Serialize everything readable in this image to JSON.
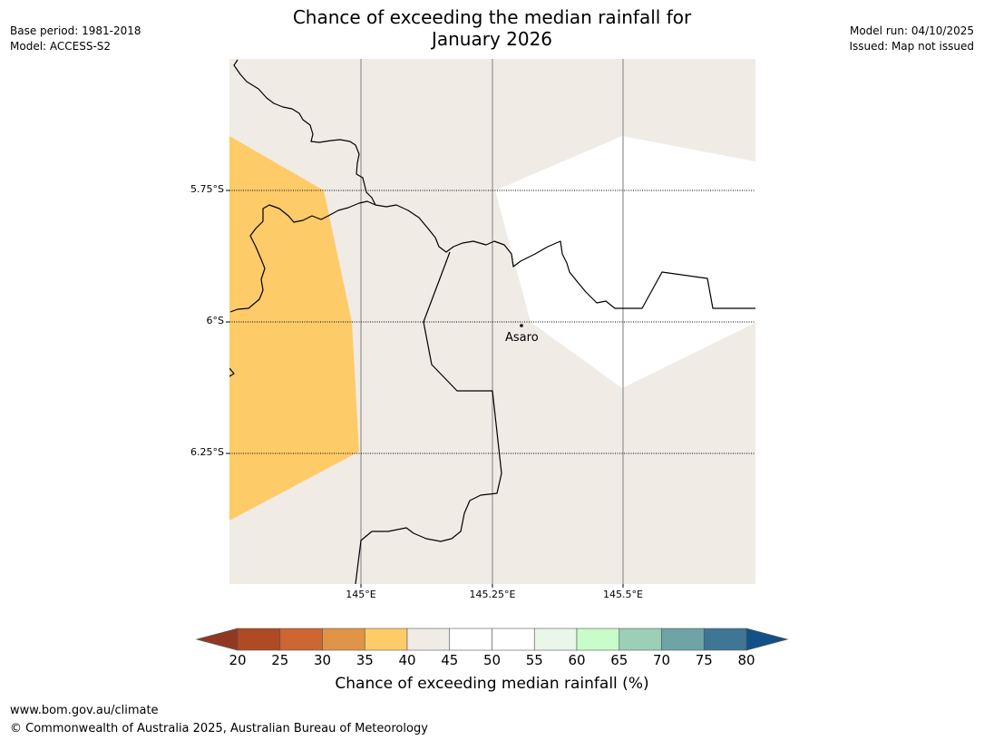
{
  "title": {
    "line1": "Chance of exceeding the median rainfall for",
    "line2": "January 2026"
  },
  "meta_left": {
    "base_period": "Base period: 1981-2018",
    "model": "Model: ACCESS-S2"
  },
  "meta_right": {
    "model_run": "Model run: 04/10/2025",
    "issued": "Issued: Map not issued"
  },
  "map": {
    "lat_labels": [
      "5.75°S",
      "6°S",
      "6.25°S"
    ],
    "lon_labels": [
      "145°E",
      "145.25°E",
      "145.5°E"
    ],
    "city": "Asaro"
  },
  "colorbar": {
    "ticks": [
      "20",
      "25",
      "30",
      "35",
      "40",
      "45",
      "50",
      "55",
      "60",
      "65",
      "70",
      "75",
      "80"
    ],
    "bins": [
      {
        "range": "20-25",
        "color": "#b04a24"
      },
      {
        "range": "25-30",
        "color": "#cd6631"
      },
      {
        "range": "30-35",
        "color": "#e09447"
      },
      {
        "range": "35-40",
        "color": "#fecb69"
      },
      {
        "range": "40-45",
        "color": "#f0ebe5"
      },
      {
        "range": "45-50",
        "color": "#ffffff"
      },
      {
        "range": "50-55",
        "color": "#ffffff"
      },
      {
        "range": "55-60",
        "color": "#eaf6ea"
      },
      {
        "range": "60-65",
        "color": "#c8fcca"
      },
      {
        "range": "65-70",
        "color": "#9ccfb8"
      },
      {
        "range": "70-75",
        "color": "#6ea4a6"
      },
      {
        "range": "75-80",
        "color": "#3f7696"
      }
    ],
    "under_color": "#923822",
    "over_color": "#13508a",
    "label": "Chance of exceeding median rainfall (%)"
  },
  "footer": {
    "url": "www.bom.gov.au/climate",
    "copyright": "© Commonwealth of Australia 2025, Australian Bureau of Meteorology"
  }
}
